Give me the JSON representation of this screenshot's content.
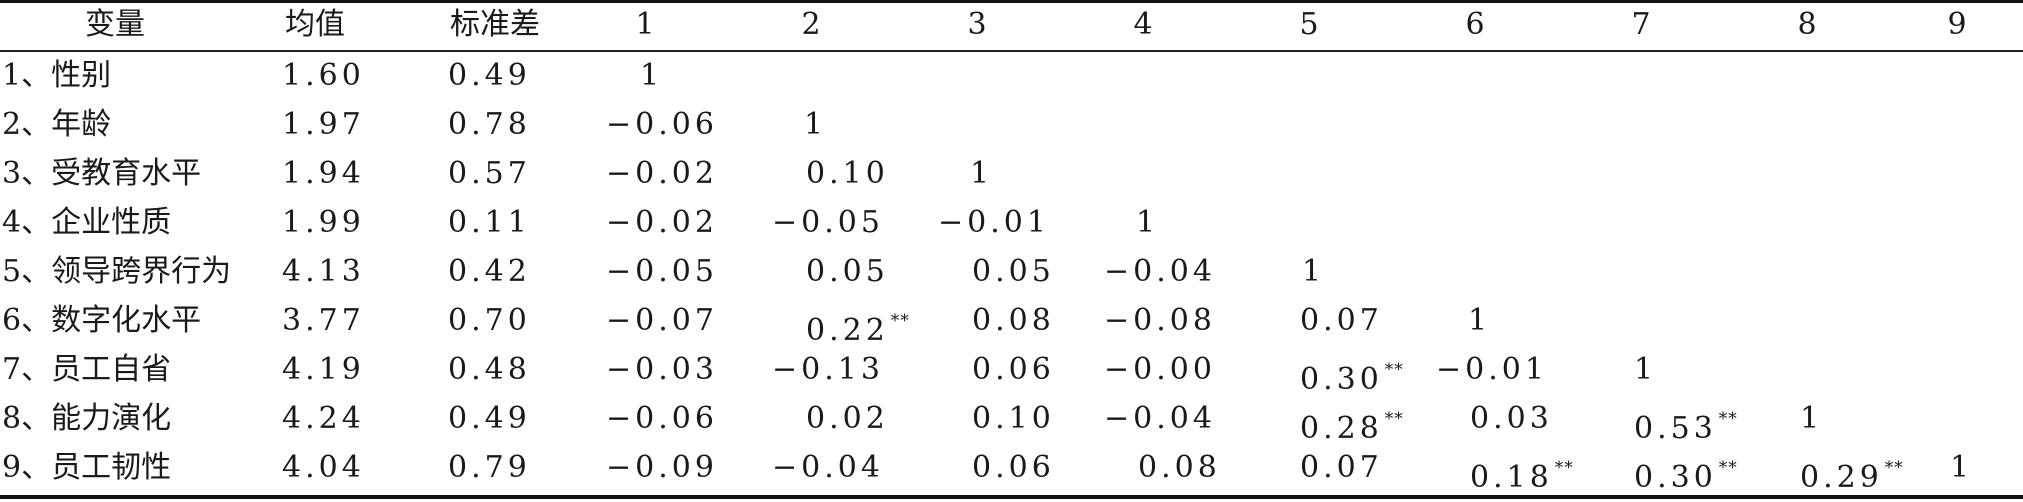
{
  "table": {
    "headers": {
      "variable": "变量",
      "mean": "均值",
      "sd": "标准差",
      "cols": [
        "1",
        "2",
        "3",
        "4",
        "5",
        "6",
        "7",
        "8",
        "9"
      ]
    },
    "rows": [
      {
        "var": "1、性别",
        "mean": "1.60",
        "sd": "0.49",
        "c1": "1"
      },
      {
        "var": "2、年龄",
        "mean": "1.97",
        "sd": "0.78",
        "c1": "−0.06",
        "c2": "1"
      },
      {
        "var": "3、受教育水平",
        "mean": "1.94",
        "sd": "0.57",
        "c1": "−0.02",
        "c2": "0.10",
        "c3": "1"
      },
      {
        "var": "4、企业性质",
        "mean": "1.99",
        "sd": "0.11",
        "c1": "−0.02",
        "c2": "−0.05",
        "c3": "−0.01",
        "c4": "1"
      },
      {
        "var": "5、领导跨界行为",
        "mean": "4.13",
        "sd": "0.42",
        "c1": "−0.05",
        "c2": "0.05",
        "c3": "0.05",
        "c4": "−0.04",
        "c5": "1"
      },
      {
        "var": "6、数字化水平",
        "mean": "3.77",
        "sd": "0.70",
        "c1": "−0.07",
        "c2": "0.22",
        "c2_sig": "**",
        "c3": "0.08",
        "c4": "−0.08",
        "c5": "0.07",
        "c6": "1"
      },
      {
        "var": "7、员工自省",
        "mean": "4.19",
        "sd": "0.48",
        "c1": "−0.03",
        "c2": "−0.13",
        "c3": "0.06",
        "c4": "−0.00",
        "c5": "0.30",
        "c5_sig": "**",
        "c6": "−0.01",
        "c7": "1"
      },
      {
        "var": "8、能力演化",
        "mean": "4.24",
        "sd": "0.49",
        "c1": "−0.06",
        "c2": "0.02",
        "c3": "0.10",
        "c4": "−0.04",
        "c5": "0.28",
        "c5_sig": "**",
        "c6": "0.03",
        "c7": "0.53",
        "c7_sig": "**",
        "c8": "1"
      },
      {
        "var": "9、员工韧性",
        "mean": "4.04",
        "sd": "0.79",
        "c1": "−0.09",
        "c2": "−0.04",
        "c3": "0.06",
        "c4": "0.08",
        "c5": "0.07",
        "c6": "0.18",
        "c6_sig": "**",
        "c7": "0.30",
        "c7_sig": "**",
        "c8": "0.29",
        "c8_sig": "**",
        "c9": "1"
      }
    ]
  }
}
